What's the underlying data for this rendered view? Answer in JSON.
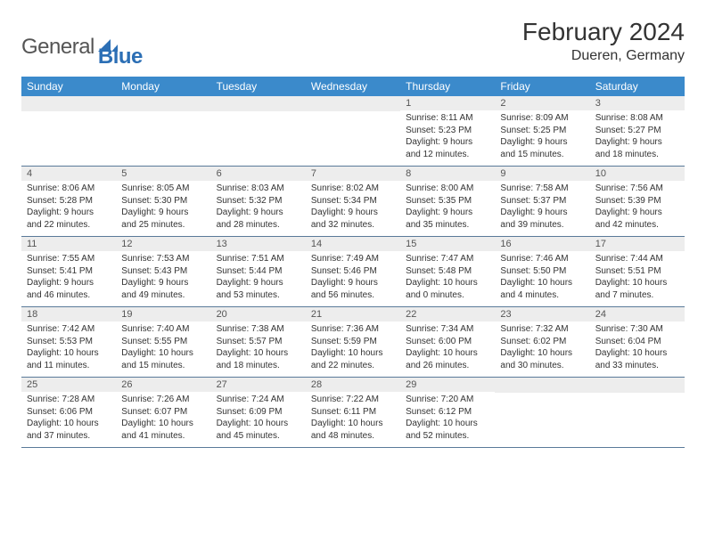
{
  "logo": {
    "general": "General",
    "blue": "Blue"
  },
  "title": "February 2024",
  "location": "Dueren, Germany",
  "header_bg": "#3b8acb",
  "daynum_bg": "#ededed",
  "border_color": "#5a7a99",
  "text_color": "#333333",
  "weekdays": [
    "Sunday",
    "Monday",
    "Tuesday",
    "Wednesday",
    "Thursday",
    "Friday",
    "Saturday"
  ],
  "weeks": [
    [
      {
        "empty": true
      },
      {
        "empty": true
      },
      {
        "empty": true
      },
      {
        "empty": true
      },
      {
        "num": "1",
        "sunrise": "Sunrise: 8:11 AM",
        "sunset": "Sunset: 5:23 PM",
        "daylight1": "Daylight: 9 hours",
        "daylight2": "and 12 minutes."
      },
      {
        "num": "2",
        "sunrise": "Sunrise: 8:09 AM",
        "sunset": "Sunset: 5:25 PM",
        "daylight1": "Daylight: 9 hours",
        "daylight2": "and 15 minutes."
      },
      {
        "num": "3",
        "sunrise": "Sunrise: 8:08 AM",
        "sunset": "Sunset: 5:27 PM",
        "daylight1": "Daylight: 9 hours",
        "daylight2": "and 18 minutes."
      }
    ],
    [
      {
        "num": "4",
        "sunrise": "Sunrise: 8:06 AM",
        "sunset": "Sunset: 5:28 PM",
        "daylight1": "Daylight: 9 hours",
        "daylight2": "and 22 minutes."
      },
      {
        "num": "5",
        "sunrise": "Sunrise: 8:05 AM",
        "sunset": "Sunset: 5:30 PM",
        "daylight1": "Daylight: 9 hours",
        "daylight2": "and 25 minutes."
      },
      {
        "num": "6",
        "sunrise": "Sunrise: 8:03 AM",
        "sunset": "Sunset: 5:32 PM",
        "daylight1": "Daylight: 9 hours",
        "daylight2": "and 28 minutes."
      },
      {
        "num": "7",
        "sunrise": "Sunrise: 8:02 AM",
        "sunset": "Sunset: 5:34 PM",
        "daylight1": "Daylight: 9 hours",
        "daylight2": "and 32 minutes."
      },
      {
        "num": "8",
        "sunrise": "Sunrise: 8:00 AM",
        "sunset": "Sunset: 5:35 PM",
        "daylight1": "Daylight: 9 hours",
        "daylight2": "and 35 minutes."
      },
      {
        "num": "9",
        "sunrise": "Sunrise: 7:58 AM",
        "sunset": "Sunset: 5:37 PM",
        "daylight1": "Daylight: 9 hours",
        "daylight2": "and 39 minutes."
      },
      {
        "num": "10",
        "sunrise": "Sunrise: 7:56 AM",
        "sunset": "Sunset: 5:39 PM",
        "daylight1": "Daylight: 9 hours",
        "daylight2": "and 42 minutes."
      }
    ],
    [
      {
        "num": "11",
        "sunrise": "Sunrise: 7:55 AM",
        "sunset": "Sunset: 5:41 PM",
        "daylight1": "Daylight: 9 hours",
        "daylight2": "and 46 minutes."
      },
      {
        "num": "12",
        "sunrise": "Sunrise: 7:53 AM",
        "sunset": "Sunset: 5:43 PM",
        "daylight1": "Daylight: 9 hours",
        "daylight2": "and 49 minutes."
      },
      {
        "num": "13",
        "sunrise": "Sunrise: 7:51 AM",
        "sunset": "Sunset: 5:44 PM",
        "daylight1": "Daylight: 9 hours",
        "daylight2": "and 53 minutes."
      },
      {
        "num": "14",
        "sunrise": "Sunrise: 7:49 AM",
        "sunset": "Sunset: 5:46 PM",
        "daylight1": "Daylight: 9 hours",
        "daylight2": "and 56 minutes."
      },
      {
        "num": "15",
        "sunrise": "Sunrise: 7:47 AM",
        "sunset": "Sunset: 5:48 PM",
        "daylight1": "Daylight: 10 hours",
        "daylight2": "and 0 minutes."
      },
      {
        "num": "16",
        "sunrise": "Sunrise: 7:46 AM",
        "sunset": "Sunset: 5:50 PM",
        "daylight1": "Daylight: 10 hours",
        "daylight2": "and 4 minutes."
      },
      {
        "num": "17",
        "sunrise": "Sunrise: 7:44 AM",
        "sunset": "Sunset: 5:51 PM",
        "daylight1": "Daylight: 10 hours",
        "daylight2": "and 7 minutes."
      }
    ],
    [
      {
        "num": "18",
        "sunrise": "Sunrise: 7:42 AM",
        "sunset": "Sunset: 5:53 PM",
        "daylight1": "Daylight: 10 hours",
        "daylight2": "and 11 minutes."
      },
      {
        "num": "19",
        "sunrise": "Sunrise: 7:40 AM",
        "sunset": "Sunset: 5:55 PM",
        "daylight1": "Daylight: 10 hours",
        "daylight2": "and 15 minutes."
      },
      {
        "num": "20",
        "sunrise": "Sunrise: 7:38 AM",
        "sunset": "Sunset: 5:57 PM",
        "daylight1": "Daylight: 10 hours",
        "daylight2": "and 18 minutes."
      },
      {
        "num": "21",
        "sunrise": "Sunrise: 7:36 AM",
        "sunset": "Sunset: 5:59 PM",
        "daylight1": "Daylight: 10 hours",
        "daylight2": "and 22 minutes."
      },
      {
        "num": "22",
        "sunrise": "Sunrise: 7:34 AM",
        "sunset": "Sunset: 6:00 PM",
        "daylight1": "Daylight: 10 hours",
        "daylight2": "and 26 minutes."
      },
      {
        "num": "23",
        "sunrise": "Sunrise: 7:32 AM",
        "sunset": "Sunset: 6:02 PM",
        "daylight1": "Daylight: 10 hours",
        "daylight2": "and 30 minutes."
      },
      {
        "num": "24",
        "sunrise": "Sunrise: 7:30 AM",
        "sunset": "Sunset: 6:04 PM",
        "daylight1": "Daylight: 10 hours",
        "daylight2": "and 33 minutes."
      }
    ],
    [
      {
        "num": "25",
        "sunrise": "Sunrise: 7:28 AM",
        "sunset": "Sunset: 6:06 PM",
        "daylight1": "Daylight: 10 hours",
        "daylight2": "and 37 minutes."
      },
      {
        "num": "26",
        "sunrise": "Sunrise: 7:26 AM",
        "sunset": "Sunset: 6:07 PM",
        "daylight1": "Daylight: 10 hours",
        "daylight2": "and 41 minutes."
      },
      {
        "num": "27",
        "sunrise": "Sunrise: 7:24 AM",
        "sunset": "Sunset: 6:09 PM",
        "daylight1": "Daylight: 10 hours",
        "daylight2": "and 45 minutes."
      },
      {
        "num": "28",
        "sunrise": "Sunrise: 7:22 AM",
        "sunset": "Sunset: 6:11 PM",
        "daylight1": "Daylight: 10 hours",
        "daylight2": "and 48 minutes."
      },
      {
        "num": "29",
        "sunrise": "Sunrise: 7:20 AM",
        "sunset": "Sunset: 6:12 PM",
        "daylight1": "Daylight: 10 hours",
        "daylight2": "and 52 minutes."
      },
      {
        "empty": true
      },
      {
        "empty": true
      }
    ]
  ]
}
